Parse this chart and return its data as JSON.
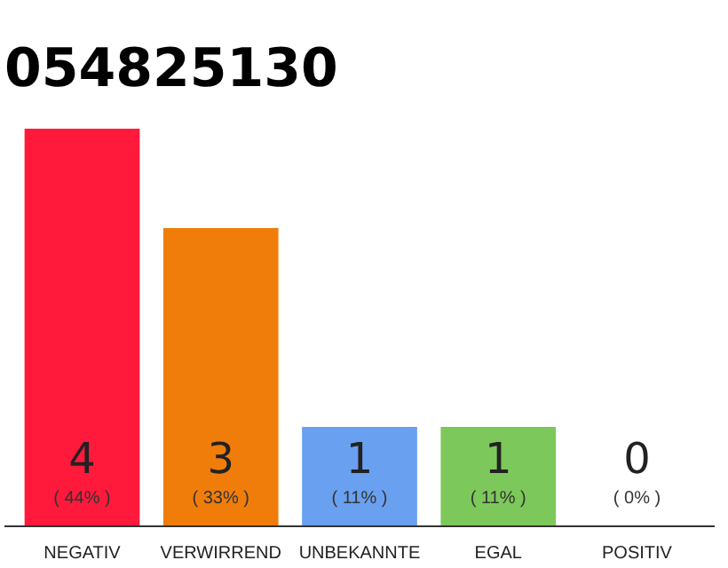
{
  "chart_data": {
    "type": "bar",
    "title": "054825130",
    "categories": [
      "NEGATIV",
      "VERWIRREND",
      "UNBEKANNTE",
      "EGAL",
      "POSITIV"
    ],
    "grid": false,
    "tick_labels": "x",
    "data_labels": true,
    "series": [
      {
        "colors": [
          "#ff1a3c",
          "#f07d0a",
          "#6aa0f0",
          "#7dc85a",
          "#7dc85a"
        ],
        "values": [
          4,
          3,
          1,
          1,
          0
        ]
      }
    ],
    "annotations": [
      {
        "text": "( 44% )",
        "x": "NEGATIV",
        "y": 0
      },
      {
        "text": "( 33% )",
        "x": "VERWIRREND",
        "y": 0
      },
      {
        "text": "( 11% )",
        "x": "UNBEKANNTE",
        "y": 0
      },
      {
        "text": "( 11% )",
        "x": "EGAL",
        "y": 0
      },
      {
        "text": "( 0% )",
        "x": "POSITIV",
        "y": 0
      }
    ]
  }
}
